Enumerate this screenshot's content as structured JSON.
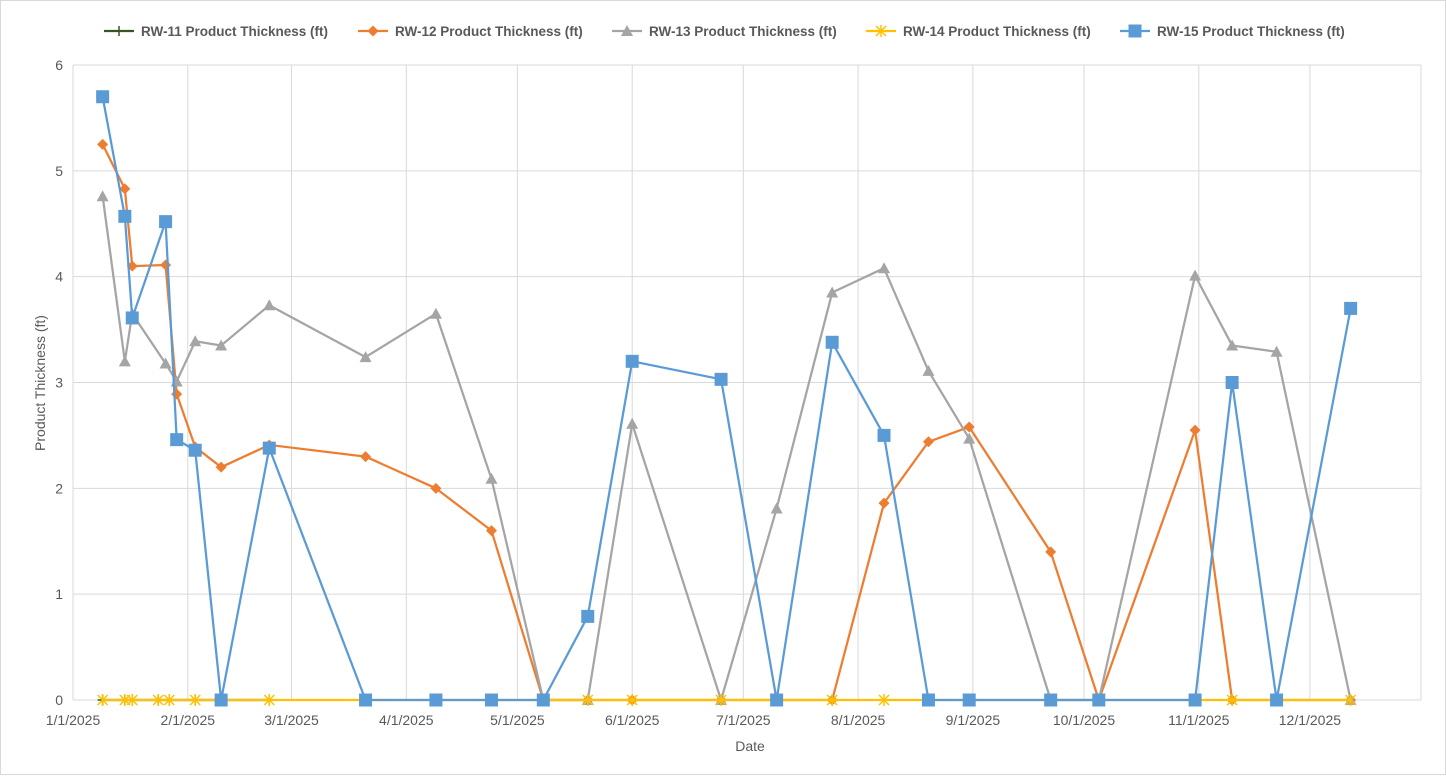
{
  "chart_data": {
    "type": "line",
    "title": "",
    "xlabel": "Date",
    "ylabel": "Product Thickness (ft)",
    "ylim": [
      0,
      6
    ],
    "yticks": [
      "0",
      "1",
      "2",
      "3",
      "4",
      "5",
      "6"
    ],
    "xlim": [
      "1/1/2025",
      "12/31/2025"
    ],
    "xticks": [
      "1/1/2025",
      "2/1/2025",
      "3/1/2025",
      "4/1/2025",
      "5/1/2025",
      "6/1/2025",
      "7/1/2025",
      "8/1/2025",
      "9/1/2025",
      "10/1/2025",
      "11/1/2025",
      "12/1/2025"
    ],
    "grid": true,
    "legend_position": "top",
    "series": [
      {
        "name": "RW-11 Product Thickness (ft)",
        "color": "#375623",
        "marker": "plus",
        "points": [
          [
            "1/9/2025",
            0
          ],
          [
            "1/15/2025",
            0
          ],
          [
            "1/17/2025",
            0
          ],
          [
            "1/24/2025",
            0
          ],
          [
            "1/27/2025",
            0
          ],
          [
            "2/3/2025",
            0
          ],
          [
            "2/23/2025",
            0
          ]
        ]
      },
      {
        "name": "RW-12 Product Thickness (ft)",
        "color": "#ED7D31",
        "marker": "diamond",
        "points": [
          [
            "1/9/2025",
            5.25
          ],
          [
            "1/15/2025",
            4.83
          ],
          [
            "1/17/2025",
            4.1
          ],
          [
            "1/26/2025",
            4.11
          ],
          [
            "1/29/2025",
            2.89
          ],
          [
            "2/3/2025",
            2.39
          ],
          [
            "2/10/2025",
            2.2
          ],
          [
            "2/23/2025",
            2.41
          ],
          [
            "3/21/2025",
            2.3
          ],
          [
            "4/9/2025",
            2.0
          ],
          [
            "4/24/2025",
            1.6
          ],
          [
            "5/8/2025",
            0
          ],
          [
            "5/20/2025",
            0
          ],
          [
            "6/1/2025",
            0
          ],
          [
            "6/25/2025",
            0
          ],
          [
            "7/10/2025",
            0
          ],
          [
            "7/25/2025",
            0
          ],
          [
            "8/8/2025",
            1.86
          ],
          [
            "8/20/2025",
            2.44
          ],
          [
            "8/31/2025",
            2.58
          ],
          [
            "9/22/2025",
            1.4
          ],
          [
            "10/5/2025",
            0
          ],
          [
            "10/31/2025",
            2.55
          ],
          [
            "11/10/2025",
            0
          ],
          [
            "11/22/2025",
            0
          ],
          [
            "12/12/2025",
            0
          ]
        ]
      },
      {
        "name": "RW-13 Product Thickness (ft)",
        "color": "#A5A5A5",
        "marker": "triangle",
        "points": [
          [
            "1/9/2025",
            4.76
          ],
          [
            "1/15/2025",
            3.2
          ],
          [
            "1/17/2025",
            3.65
          ],
          [
            "1/26/2025",
            3.18
          ],
          [
            "1/29/2025",
            3.01
          ],
          [
            "2/3/2025",
            3.39
          ],
          [
            "2/10/2025",
            3.35
          ],
          [
            "2/23/2025",
            3.73
          ],
          [
            "3/21/2025",
            3.24
          ],
          [
            "4/9/2025",
            3.65
          ],
          [
            "4/24/2025",
            2.09
          ],
          [
            "5/8/2025",
            0
          ],
          [
            "5/20/2025",
            0
          ],
          [
            "6/1/2025",
            2.61
          ],
          [
            "6/25/2025",
            0
          ],
          [
            "7/10/2025",
            1.81
          ],
          [
            "7/25/2025",
            3.85
          ],
          [
            "8/8/2025",
            4.08
          ],
          [
            "8/20/2025",
            3.11
          ],
          [
            "8/31/2025",
            2.47
          ],
          [
            "9/22/2025",
            0
          ],
          [
            "10/5/2025",
            0
          ],
          [
            "10/31/2025",
            4.01
          ],
          [
            "11/10/2025",
            3.35
          ],
          [
            "11/22/2025",
            3.29
          ],
          [
            "12/12/2025",
            0
          ]
        ]
      },
      {
        "name": "RW-14 Product Thickness (ft)",
        "color": "#FFC000",
        "marker": "star",
        "points": [
          [
            "1/9/2025",
            0
          ],
          [
            "1/15/2025",
            0
          ],
          [
            "1/17/2025",
            0
          ],
          [
            "1/24/2025",
            0
          ],
          [
            "1/27/2025",
            0
          ],
          [
            "2/3/2025",
            0
          ],
          [
            "2/23/2025",
            0
          ],
          [
            "5/20/2025",
            0
          ],
          [
            "6/1/2025",
            0
          ],
          [
            "6/25/2025",
            0
          ],
          [
            "7/25/2025",
            0
          ],
          [
            "8/8/2025",
            0
          ],
          [
            "11/10/2025",
            0
          ],
          [
            "12/12/2025",
            0
          ]
        ]
      },
      {
        "name": "RW-15 Product Thickness (ft)",
        "color": "#5B9BD5",
        "marker": "square",
        "points": [
          [
            "1/9/2025",
            5.7
          ],
          [
            "1/15/2025",
            4.57
          ],
          [
            "1/17/2025",
            3.61
          ],
          [
            "1/26/2025",
            4.52
          ],
          [
            "1/29/2025",
            2.46
          ],
          [
            "2/3/2025",
            2.36
          ],
          [
            "2/10/2025",
            0
          ],
          [
            "2/23/2025",
            2.38
          ],
          [
            "3/21/2025",
            0
          ],
          [
            "4/9/2025",
            0
          ],
          [
            "4/24/2025",
            0
          ],
          [
            "5/8/2025",
            0
          ],
          [
            "5/20/2025",
            0.79
          ],
          [
            "6/1/2025",
            3.2
          ],
          [
            "6/25/2025",
            3.03
          ],
          [
            "7/10/2025",
            0
          ],
          [
            "7/25/2025",
            3.38
          ],
          [
            "8/8/2025",
            2.5
          ],
          [
            "8/20/2025",
            0
          ],
          [
            "8/31/2025",
            0
          ],
          [
            "9/22/2025",
            0
          ],
          [
            "10/5/2025",
            0
          ],
          [
            "10/31/2025",
            0
          ],
          [
            "11/10/2025",
            3.0
          ],
          [
            "11/22/2025",
            0
          ],
          [
            "12/12/2025",
            3.7
          ]
        ]
      }
    ]
  }
}
